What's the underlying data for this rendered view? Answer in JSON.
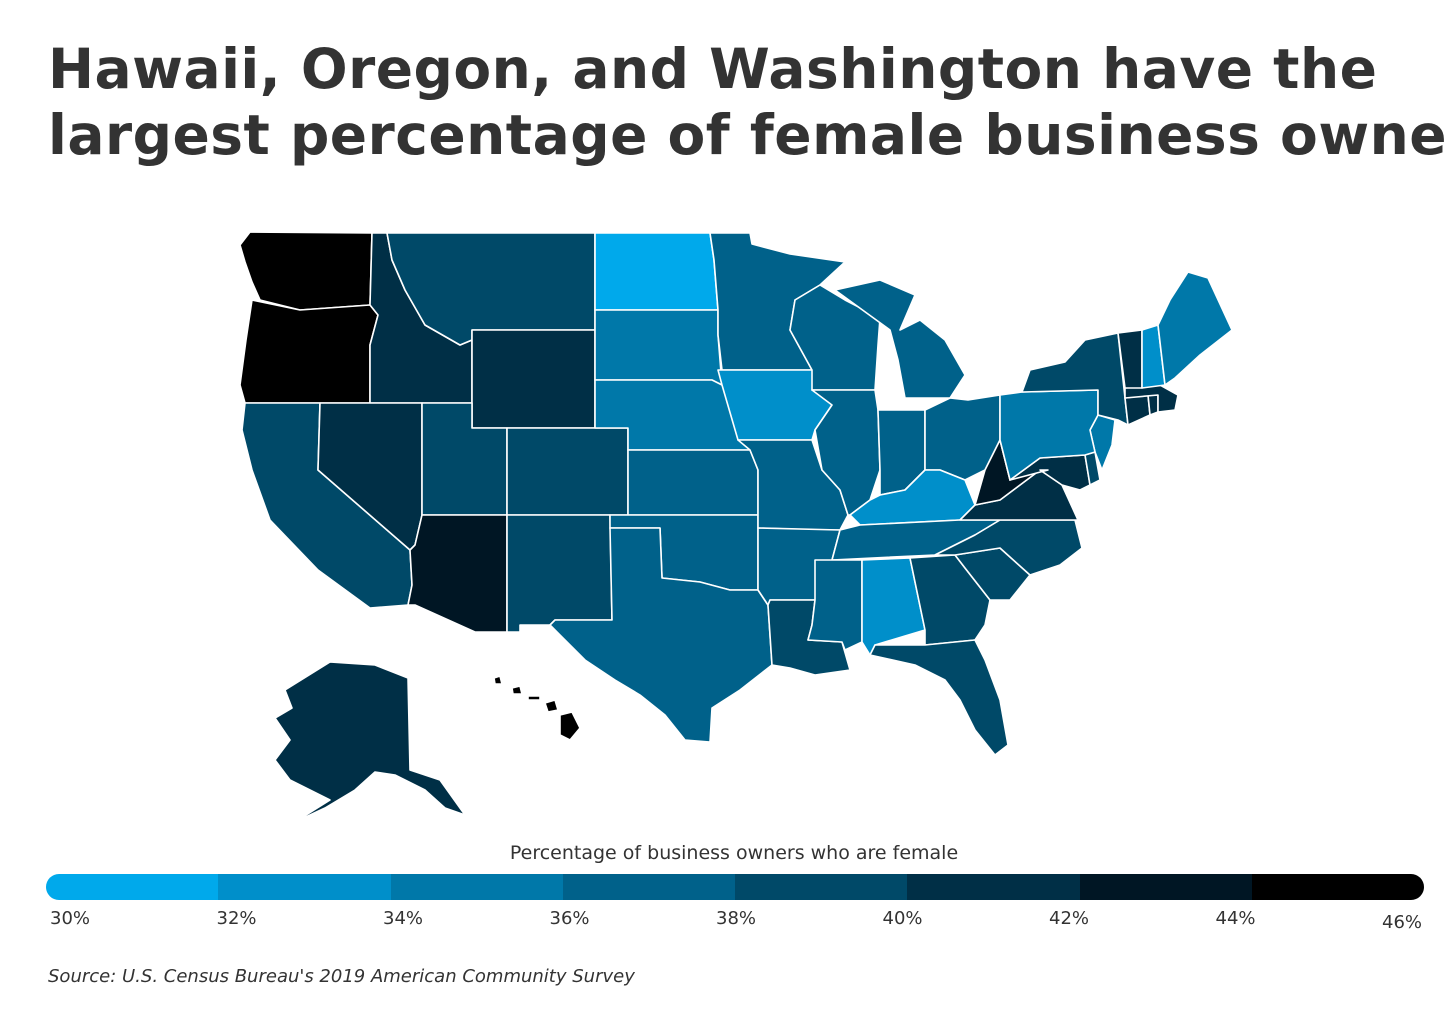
{
  "title_lines": [
    "Hawaii, Oregon, and Washington have the",
    "largest percentage of female business owners"
  ],
  "legend": {
    "caption": "Percentage of business owners who are female",
    "bins": [
      {
        "color": "#00a9eb"
      },
      {
        "color": "#008fca"
      },
      {
        "color": "#0078a9"
      },
      {
        "color": "#00618a"
      },
      {
        "color": "#004968"
      },
      {
        "color": "#002f46"
      },
      {
        "color": "#001624"
      },
      {
        "color": "#000000"
      }
    ],
    "ticks": [
      "30%",
      "32%",
      "34%",
      "36%",
      "38%",
      "40%",
      "42%",
      "44%",
      "46%"
    ]
  },
  "map": {
    "border_color": "#ffffff",
    "states": [
      {
        "id": "WA",
        "bin": 7
      },
      {
        "id": "OR",
        "bin": 7
      },
      {
        "id": "CA",
        "bin": 4
      },
      {
        "id": "ID",
        "bin": 5
      },
      {
        "id": "NV",
        "bin": 5
      },
      {
        "id": "MT",
        "bin": 4
      },
      {
        "id": "WY",
        "bin": 5
      },
      {
        "id": "UT",
        "bin": 4
      },
      {
        "id": "AZ",
        "bin": 6
      },
      {
        "id": "CO",
        "bin": 4
      },
      {
        "id": "NM",
        "bin": 4
      },
      {
        "id": "ND",
        "bin": 0
      },
      {
        "id": "SD",
        "bin": 2
      },
      {
        "id": "NE",
        "bin": 2
      },
      {
        "id": "KS",
        "bin": 3
      },
      {
        "id": "OK",
        "bin": 3
      },
      {
        "id": "TX",
        "bin": 3
      },
      {
        "id": "MN",
        "bin": 3
      },
      {
        "id": "IA",
        "bin": 1
      },
      {
        "id": "MO",
        "bin": 3
      },
      {
        "id": "AR",
        "bin": 3
      },
      {
        "id": "LA",
        "bin": 4
      },
      {
        "id": "WI",
        "bin": 3
      },
      {
        "id": "IL",
        "bin": 3
      },
      {
        "id": "MI",
        "bin": 3
      },
      {
        "id": "IN",
        "bin": 3
      },
      {
        "id": "OH",
        "bin": 3
      },
      {
        "id": "KY",
        "bin": 1
      },
      {
        "id": "TN",
        "bin": 3
      },
      {
        "id": "MS",
        "bin": 3
      },
      {
        "id": "AL",
        "bin": 1
      },
      {
        "id": "GA",
        "bin": 4
      },
      {
        "id": "FL",
        "bin": 4
      },
      {
        "id": "SC",
        "bin": 4
      },
      {
        "id": "NC",
        "bin": 4
      },
      {
        "id": "VA",
        "bin": 5
      },
      {
        "id": "WV",
        "bin": 6
      },
      {
        "id": "MD",
        "bin": 5
      },
      {
        "id": "DE",
        "bin": 4
      },
      {
        "id": "NJ",
        "bin": 2
      },
      {
        "id": "PA",
        "bin": 2
      },
      {
        "id": "NY",
        "bin": 4
      },
      {
        "id": "CT",
        "bin": 5
      },
      {
        "id": "RI",
        "bin": 5
      },
      {
        "id": "MA",
        "bin": 5
      },
      {
        "id": "VT",
        "bin": 5
      },
      {
        "id": "NH",
        "bin": 1
      },
      {
        "id": "ME",
        "bin": 2
      },
      {
        "id": "AK",
        "bin": 5
      },
      {
        "id": "HI",
        "bin": 7
      }
    ]
  },
  "source": "Source:  U.S. Census Bureau's 2019 American Community Survey"
}
